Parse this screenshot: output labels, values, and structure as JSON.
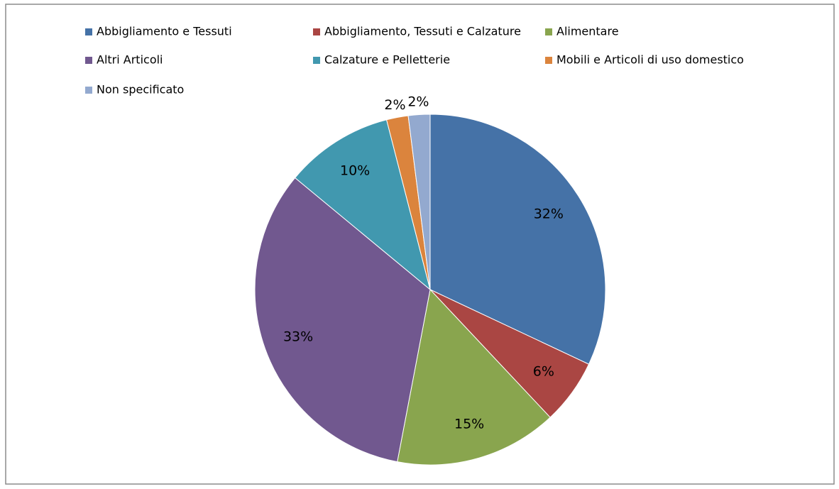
{
  "chart_data": {
    "type": "pie",
    "categories": [
      "Abbigliamento e Tessuti",
      "Abbigliamento, Tessuti e Calzature",
      "Alimentare",
      "Altri Articoli",
      "Calzature e Pelletterie",
      "Mobili e Articoli di uso domestico",
      "Non specificato"
    ],
    "values": [
      32,
      6,
      15,
      33,
      10,
      2,
      2
    ],
    "value_labels": [
      "32%",
      "6%",
      "15%",
      "33%",
      "10%",
      "2%",
      "2%"
    ],
    "colors": [
      "#4572a7",
      "#aa4643",
      "#89a54e",
      "#71588f",
      "#4198af",
      "#db843d",
      "#93a9cf"
    ],
    "legend": "top"
  }
}
